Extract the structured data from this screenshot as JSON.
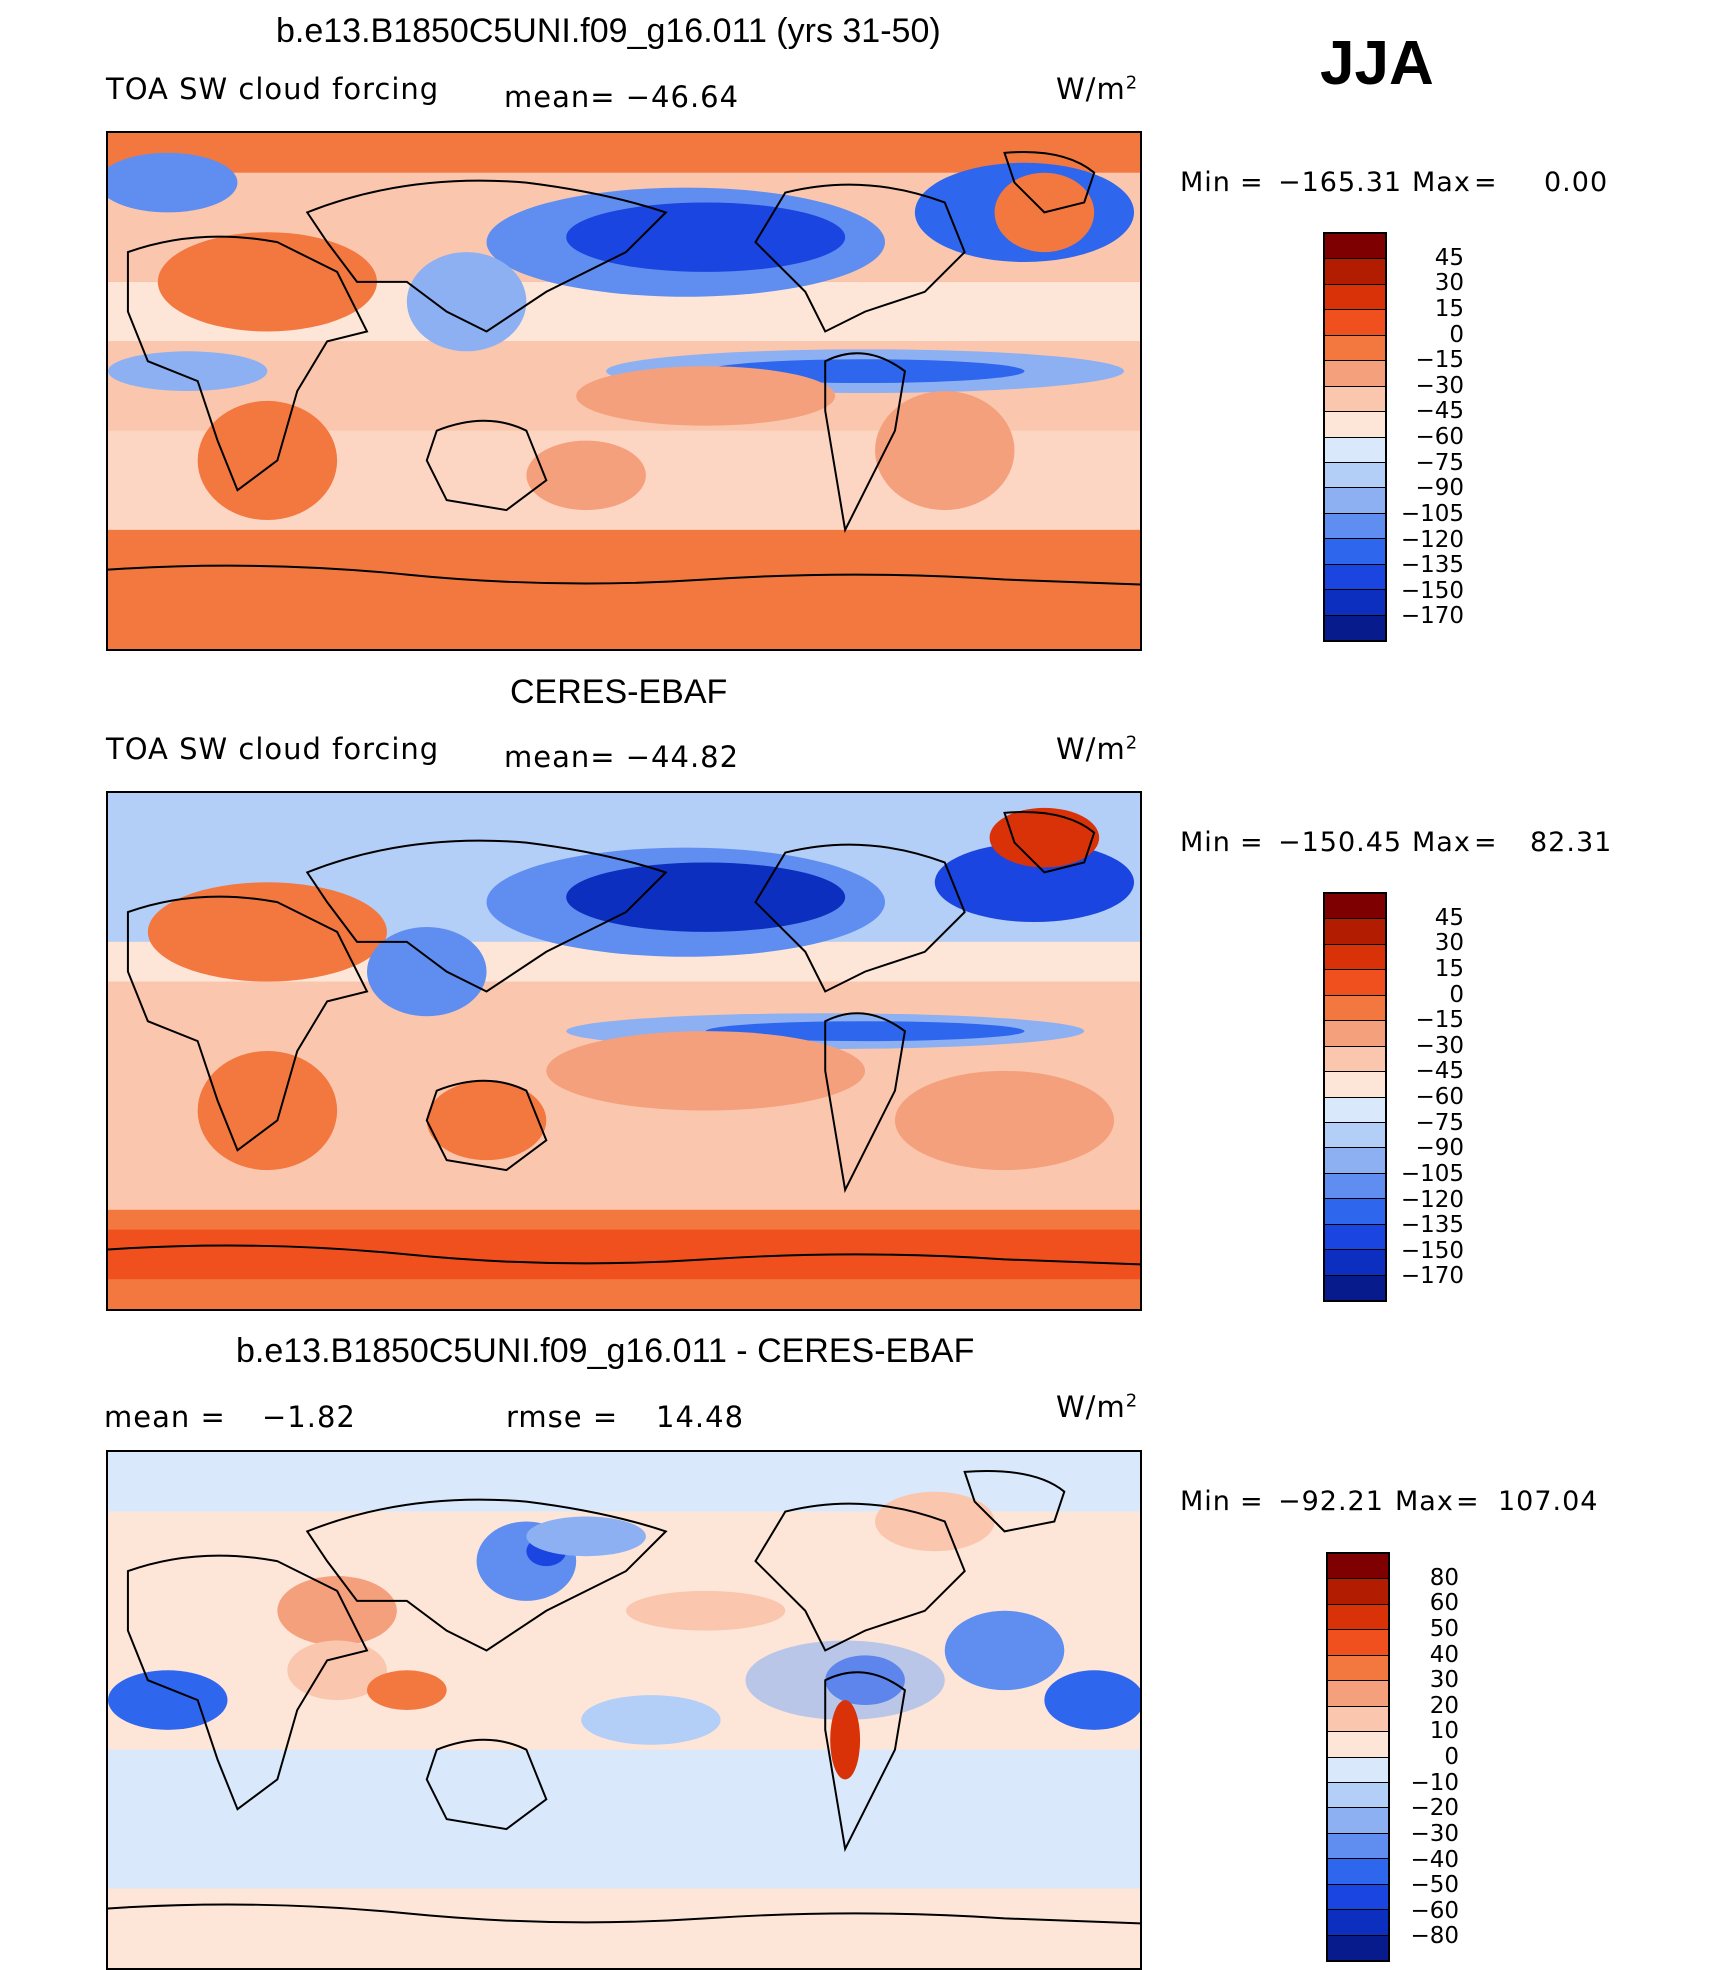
{
  "season": "JJA",
  "panels": [
    {
      "title": "b.e13.B1850C5UNI.f09_g16.011 (yrs 31-50)",
      "left_label": "TOA SW cloud forcing",
      "center_label": "mean= −46.64",
      "units": "W/m",
      "units_exp": "2",
      "min_label": "Min",
      "min_value": "−165.31",
      "max_label": "Max",
      "max_value": "0.00",
      "colorbar_labels": [
        "45",
        "30",
        "15",
        "0",
        "−15",
        "−30",
        "−45",
        "−60",
        "−75",
        "−90",
        "−105",
        "−120",
        "−135",
        "−150",
        "−170"
      ]
    },
    {
      "title": "CERES-EBAF",
      "left_label": "TOA SW cloud forcing",
      "center_label": "mean= −44.82",
      "units": "W/m",
      "units_exp": "2",
      "min_label": "Min",
      "min_value": "−150.45",
      "max_label": "Max",
      "max_value": "82.31",
      "colorbar_labels": [
        "45",
        "30",
        "15",
        "0",
        "−15",
        "−30",
        "−45",
        "−60",
        "−75",
        "−90",
        "−105",
        "−120",
        "−135",
        "−150",
        "−170"
      ]
    },
    {
      "title": "b.e13.B1850C5UNI.f09_g16.011 - CERES-EBAF",
      "left_label": "mean =",
      "left_value": "−1.82",
      "center_label": "rmse =",
      "center_value": "14.48",
      "units": "W/m",
      "units_exp": "2",
      "min_label": "Min",
      "min_value": "−92.21",
      "max_label": "Max",
      "max_value": "107.04",
      "colorbar_labels": [
        "80",
        "60",
        "50",
        "40",
        "30",
        "20",
        "10",
        "0",
        "−10",
        "−20",
        "−30",
        "−40",
        "−50",
        "−60",
        "−80"
      ]
    }
  ],
  "colors": {
    "abs_scale": [
      "#7f0000",
      "#b21c00",
      "#d93209",
      "#f0501e",
      "#f27840",
      "#f5a07c",
      "#fac7ae",
      "#fde6d8",
      "#d9e8fb",
      "#b3cef7",
      "#8cb0f2",
      "#5f8ef0",
      "#2f66ee",
      "#1a45e0",
      "#0d2fc0",
      "#071b8c"
    ],
    "diff_scale": [
      "#7f0000",
      "#b21c00",
      "#d93209",
      "#f0501e",
      "#f27840",
      "#f5a07c",
      "#fac7ae",
      "#fde6d8",
      "#d9e8fb",
      "#b3cef7",
      "#8cb0f2",
      "#5f8ef0",
      "#2f66ee",
      "#1a45e0",
      "#0d2fc0",
      "#071b8c"
    ]
  }
}
